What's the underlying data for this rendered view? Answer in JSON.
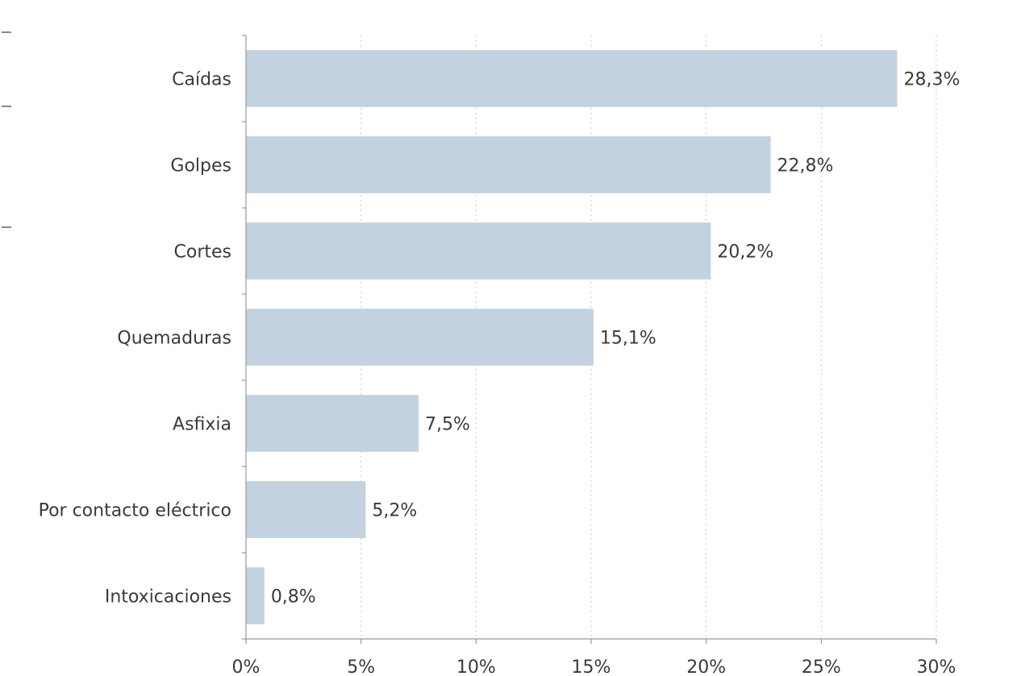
{
  "chart_data": {
    "type": "bar",
    "orientation": "horizontal",
    "categories": [
      "Caídas",
      "Golpes",
      "Cortes",
      "Quemaduras",
      "Asfixia",
      "Por contacto eléctrico",
      "Intoxicaciones"
    ],
    "values": [
      28.3,
      22.8,
      20.2,
      15.1,
      7.5,
      5.2,
      0.8
    ],
    "value_labels": [
      "28,3%",
      "22,8%",
      "20,2%",
      "15,1%",
      "7,5%",
      "5,2%",
      "0,8%"
    ],
    "xlim": [
      0,
      30
    ],
    "x_ticks": [
      0,
      5,
      10,
      15,
      20,
      25,
      30
    ],
    "x_tick_labels": [
      "0%",
      "5%",
      "10%",
      "15%",
      "20%",
      "25%",
      "30%"
    ],
    "title": "",
    "xlabel": "",
    "ylabel": "",
    "grid": "vertical dotted",
    "legend": "none",
    "bar_color": "#c2d2df"
  }
}
